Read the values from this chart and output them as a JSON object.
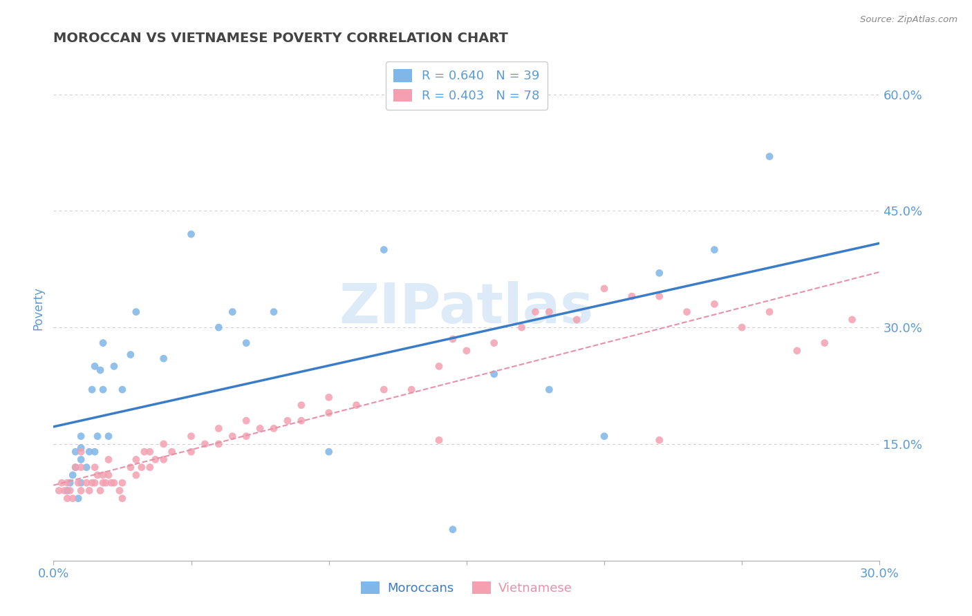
{
  "title": "MOROCCAN VS VIETNAMESE POVERTY CORRELATION CHART",
  "source": "Source: ZipAtlas.com",
  "ylabel": "Poverty",
  "xlim": [
    0.0,
    0.3
  ],
  "ylim": [
    0.0,
    0.65
  ],
  "moroccan_color": "#7EB7E8",
  "vietnamese_color": "#F4A0B0",
  "moroccan_line_color": "#3A7CC8",
  "vietnamese_line_color": "#E890A8",
  "moroccan_R": 0.64,
  "moroccan_N": 39,
  "vietnamese_R": 0.403,
  "vietnamese_N": 78,
  "grid_color": "#CCCCCC",
  "background_color": "#FFFFFF",
  "title_color": "#444444",
  "axis_label_color": "#5B9BD5",
  "watermark_color": "#DDEAF8",
  "moroccan_x": [
    0.005,
    0.006,
    0.007,
    0.008,
    0.008,
    0.009,
    0.01,
    0.01,
    0.01,
    0.01,
    0.012,
    0.013,
    0.014,
    0.015,
    0.015,
    0.016,
    0.017,
    0.018,
    0.018,
    0.02,
    0.022,
    0.025,
    0.028,
    0.03,
    0.04,
    0.05,
    0.06,
    0.065,
    0.07,
    0.08,
    0.1,
    0.12,
    0.145,
    0.16,
    0.18,
    0.2,
    0.22,
    0.24,
    0.26
  ],
  "moroccan_y": [
    0.09,
    0.1,
    0.11,
    0.12,
    0.14,
    0.08,
    0.1,
    0.13,
    0.145,
    0.16,
    0.12,
    0.14,
    0.22,
    0.14,
    0.25,
    0.16,
    0.245,
    0.22,
    0.28,
    0.16,
    0.25,
    0.22,
    0.265,
    0.32,
    0.26,
    0.42,
    0.3,
    0.32,
    0.28,
    0.32,
    0.14,
    0.4,
    0.04,
    0.24,
    0.22,
    0.16,
    0.37,
    0.4,
    0.52
  ],
  "vietnamese_x": [
    0.002,
    0.003,
    0.004,
    0.005,
    0.005,
    0.006,
    0.007,
    0.008,
    0.009,
    0.01,
    0.01,
    0.01,
    0.012,
    0.013,
    0.014,
    0.015,
    0.015,
    0.016,
    0.017,
    0.018,
    0.018,
    0.019,
    0.02,
    0.02,
    0.021,
    0.022,
    0.024,
    0.025,
    0.025,
    0.028,
    0.03,
    0.03,
    0.032,
    0.033,
    0.035,
    0.035,
    0.037,
    0.04,
    0.04,
    0.043,
    0.05,
    0.05,
    0.055,
    0.06,
    0.06,
    0.065,
    0.07,
    0.07,
    0.075,
    0.08,
    0.085,
    0.09,
    0.09,
    0.1,
    0.1,
    0.11,
    0.12,
    0.13,
    0.14,
    0.145,
    0.15,
    0.16,
    0.17,
    0.175,
    0.18,
    0.19,
    0.2,
    0.21,
    0.22,
    0.23,
    0.24,
    0.25,
    0.26,
    0.27,
    0.28,
    0.29,
    0.14,
    0.22
  ],
  "vietnamese_y": [
    0.09,
    0.1,
    0.09,
    0.08,
    0.1,
    0.09,
    0.08,
    0.12,
    0.1,
    0.09,
    0.12,
    0.14,
    0.1,
    0.09,
    0.1,
    0.1,
    0.12,
    0.11,
    0.09,
    0.1,
    0.11,
    0.1,
    0.11,
    0.13,
    0.1,
    0.1,
    0.09,
    0.08,
    0.1,
    0.12,
    0.11,
    0.13,
    0.12,
    0.14,
    0.12,
    0.14,
    0.13,
    0.13,
    0.15,
    0.14,
    0.14,
    0.16,
    0.15,
    0.15,
    0.17,
    0.16,
    0.16,
    0.18,
    0.17,
    0.17,
    0.18,
    0.18,
    0.2,
    0.19,
    0.21,
    0.2,
    0.22,
    0.22,
    0.25,
    0.285,
    0.27,
    0.28,
    0.3,
    0.32,
    0.32,
    0.31,
    0.35,
    0.34,
    0.34,
    0.32,
    0.33,
    0.3,
    0.32,
    0.27,
    0.28,
    0.31,
    0.155,
    0.155
  ]
}
